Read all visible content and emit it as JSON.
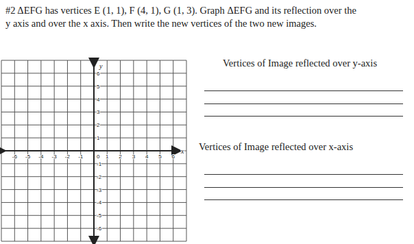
{
  "problem": {
    "lines": [
      "#2 ΔEFG has vertices E (1, 1), F (4, 1), G (1, 3).  Graph ΔEFG and its reflection over the",
      "y axis and over the x axis.  Then write the new vertices of the two new images."
    ]
  },
  "answer_sections": [
    {
      "label": "Vertices of Image reflected over y-axis",
      "blank_lines": 3
    },
    {
      "label": "Vertices of Image reflected over x-axis",
      "blank_lines": 3
    }
  ],
  "chart_data": {
    "type": "scatter",
    "x_label": "x",
    "y_label": "y",
    "origin_label": 0,
    "xlim": [
      -7,
      7
    ],
    "ylim": [
      -7,
      7
    ],
    "xticks": [
      -6,
      -5,
      -4,
      -3,
      -2,
      -1,
      1,
      2,
      3,
      4,
      5,
      6
    ],
    "yticks": [
      6,
      5,
      4,
      3,
      2,
      1,
      -1,
      -2,
      -3,
      -4,
      -5,
      -6
    ],
    "grid": true,
    "series": []
  }
}
